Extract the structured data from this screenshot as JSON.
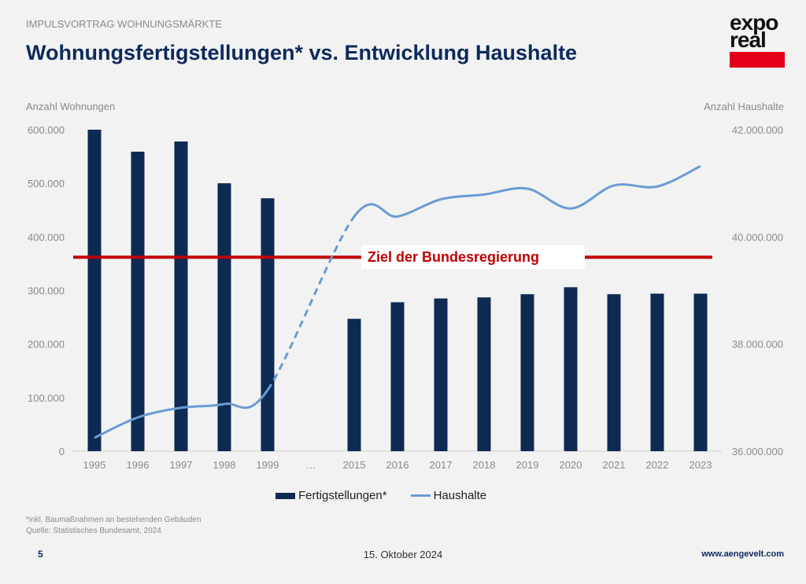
{
  "header": {
    "kicker": "IMPULSVORTRAG WOHNUNGSMÄRKTE",
    "title": "Wohnungsfertigstellungen* vs. Entwicklung Haushalte"
  },
  "logo": {
    "line1": "expo",
    "line2": "real"
  },
  "footer": {
    "footnote1": "*inkl. Baumaßnahmen an bestehenden Gebäuden",
    "footnote2": "Quelle: Statistisches Bundesamt, 2024",
    "page": "5",
    "date": "15. Oktober 2024",
    "url": "www.aengevelt.com"
  },
  "chart_data": {
    "type": "bar",
    "title": "Wohnungsfertigstellungen* vs. Entwicklung Haushalte",
    "ylabel": "Anzahl Wohnungen",
    "y2label": "Anzahl Haushalte",
    "ylim": [
      0,
      600000
    ],
    "y2lim": [
      36000000,
      42000000
    ],
    "yticks": [
      "0",
      "100.000",
      "200.000",
      "300.000",
      "400.000",
      "500.000",
      "600.000"
    ],
    "y2ticks": [
      "36.000.000",
      "38.000.000",
      "40.000.000",
      "42.000.000"
    ],
    "categories": [
      "1995",
      "1996",
      "1997",
      "1998",
      "1999",
      "…",
      "2015",
      "2016",
      "2017",
      "2018",
      "2019",
      "2020",
      "2021",
      "2022",
      "2023"
    ],
    "series": [
      {
        "name": "Fertigstellungen*",
        "type": "bar",
        "axis": "left",
        "color": "#0d2a53",
        "values": [
          600000,
          559000,
          578000,
          500000,
          472000,
          null,
          247000,
          278000,
          285000,
          287000,
          293000,
          306000,
          293000,
          294000,
          294000
        ]
      },
      {
        "name": "Haushalte",
        "type": "line",
        "axis": "right",
        "color": "#6a9bd3",
        "values": [
          36250000,
          36630000,
          36810000,
          36880000,
          37140000,
          null,
          40380000,
          40380000,
          40700000,
          40790000,
          40900000,
          40530000,
          40960000,
          40940000,
          41320000
        ]
      }
    ],
    "reference_line": {
      "label": "Ziel der Bundesregierung",
      "value": 362000,
      "color": "#c00000"
    },
    "legend": "bottom",
    "grid": false
  }
}
